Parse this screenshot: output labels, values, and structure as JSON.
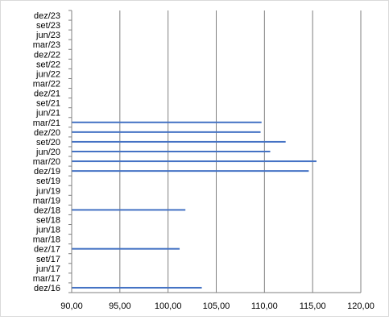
{
  "chart_data": {
    "type": "bar",
    "orientation": "horizontal",
    "categories": [
      "dez/16",
      "mar/17",
      "jun/17",
      "set/17",
      "dez/17",
      "mar/18",
      "jun/18",
      "set/18",
      "dez/18",
      "mar/19",
      "jun/19",
      "set/19",
      "dez/19",
      "mar/20",
      "jun/20",
      "set/20",
      "dez/20",
      "mar/21",
      "jun/21",
      "set/21",
      "dez/21",
      "mar/22",
      "jun/22",
      "set/22",
      "dez/22",
      "mar/23",
      "jun/23",
      "set/23",
      "dez/23"
    ],
    "values": [
      103.5,
      null,
      null,
      null,
      101.2,
      null,
      null,
      null,
      101.8,
      null,
      null,
      null,
      114.6,
      115.4,
      110.6,
      112.2,
      109.6,
      109.7,
      null,
      null,
      null,
      null,
      null,
      null,
      null,
      null,
      null,
      null,
      null
    ],
    "xticks": [
      "90,00",
      "95,00",
      "100,00",
      "105,00",
      "110,00",
      "115,00",
      "120,00"
    ],
    "xlim": [
      90,
      120
    ],
    "title": "",
    "xlabel": "",
    "ylabel": "",
    "grid": "vertical",
    "legend": "none",
    "colors": {
      "bar": "#4472c4",
      "grid": "#808080",
      "axis": "#808080"
    }
  }
}
